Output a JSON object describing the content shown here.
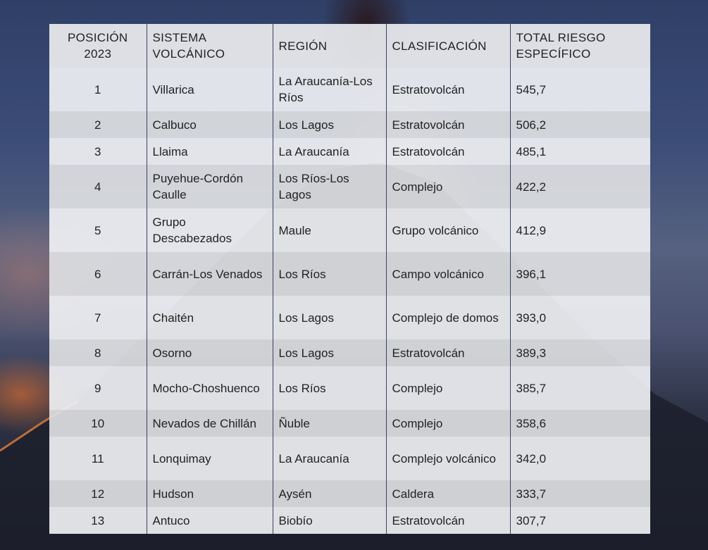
{
  "table": {
    "headers": [
      "POSICIÓN 2023",
      "SISTEMA VOLCÁNICO",
      "REGIÓN",
      "CLASIFICACIÓN",
      "TOTAL RIESGO ESPECÍFICO"
    ],
    "rows": [
      [
        "1",
        "Villarica",
        "La Araucanía-Los Ríos",
        "Estratovolcán",
        "545,7"
      ],
      [
        "2",
        "Calbuco",
        "Los Lagos",
        "Estratovolcán",
        "506,2"
      ],
      [
        "3",
        "Llaima",
        "La Araucanía",
        "Estratovolcán",
        "485,1"
      ],
      [
        "4",
        "Puyehue-Cordón Caulle",
        "Los Ríos-Los Lagos",
        "Complejo",
        "422,2"
      ],
      [
        "5",
        "Grupo Descabezados",
        "Maule",
        "Grupo volcánico",
        "412,9"
      ],
      [
        "6",
        "Carrán-Los Venados",
        "Los Ríos",
        "Campo volcánico",
        "396,1"
      ],
      [
        "7",
        "Chaitén",
        "Los Lagos",
        "Complejo de domos",
        "393,0"
      ],
      [
        "8",
        "Osorno",
        "Los Lagos",
        "Estratovolcán",
        "389,3"
      ],
      [
        "9",
        "Mocho-Choshuenco",
        "Los Ríos",
        "Complejo",
        "385,7"
      ],
      [
        "10",
        "Nevados de Chillán",
        "Ñuble",
        "Complejo",
        "358,6"
      ],
      [
        "11",
        "Lonquimay",
        "La Araucanía",
        "Complejo volcánico",
        "342,0"
      ],
      [
        "12",
        "Hudson",
        "Aysén",
        "Caldera",
        "333,7"
      ],
      [
        "13",
        "Antuco",
        "Biobío",
        "Estratovolcán",
        "307,7"
      ]
    ]
  },
  "colors": {
    "row_light": "#f0f1f4",
    "row_dark": "#dedfe2",
    "divider": "#3a4260"
  }
}
